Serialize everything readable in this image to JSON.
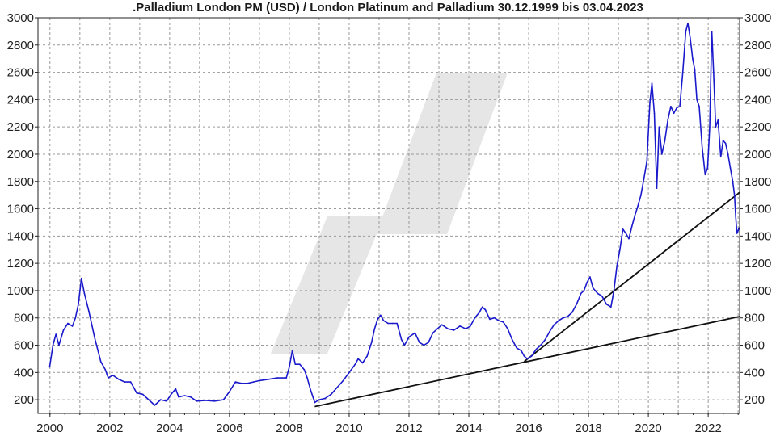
{
  "chart_data": {
    "type": "line",
    "title": ".Palladium London PM (USD) / London Platinum and Palladium 30.12.1999 bis 03.04.2023",
    "xlabel": "",
    "ylabel": "",
    "xlim": [
      1999.6,
      2023.05
    ],
    "ylim": [
      100,
      3000
    ],
    "grid": true,
    "legend": "none",
    "colors": {
      "series": "#1a1acc",
      "trend": "#111111",
      "watermark": "#e6e6e6",
      "grid": "#9a9a9a",
      "axis": "#222222"
    },
    "x_ticks": [
      {
        "v": 2000,
        "label": "2000"
      },
      {
        "v": 2002,
        "label": "2002"
      },
      {
        "v": 2004,
        "label": "2004"
      },
      {
        "v": 2006,
        "label": "2006"
      },
      {
        "v": 2008,
        "label": "2008"
      },
      {
        "v": 2010,
        "label": "2010"
      },
      {
        "v": 2012,
        "label": "2012"
      },
      {
        "v": 2014,
        "label": "2014"
      },
      {
        "v": 2016,
        "label": "2016"
      },
      {
        "v": 2018,
        "label": "2018"
      },
      {
        "v": 2020,
        "label": "2020"
      },
      {
        "v": 2022,
        "label": "2022"
      }
    ],
    "y_ticks": [
      {
        "v": 200,
        "label": "200"
      },
      {
        "v": 400,
        "label": "400"
      },
      {
        "v": 600,
        "label": "600"
      },
      {
        "v": 800,
        "label": "800"
      },
      {
        "v": 1000,
        "label": "1000"
      },
      {
        "v": 1200,
        "label": "1200"
      },
      {
        "v": 1400,
        "label": "1400"
      },
      {
        "v": 1600,
        "label": "1600"
      },
      {
        "v": 1800,
        "label": "1800"
      },
      {
        "v": 2000,
        "label": "2000"
      },
      {
        "v": 2200,
        "label": "2200"
      },
      {
        "v": 2400,
        "label": "2400"
      },
      {
        "v": 2600,
        "label": "2600"
      },
      {
        "v": 2800,
        "label": "2800"
      },
      {
        "v": 3000,
        "label": "3000"
      }
    ],
    "series": [
      {
        "values": [
          [
            1999.99,
            440
          ],
          [
            2000.1,
            600
          ],
          [
            2000.2,
            680
          ],
          [
            2000.3,
            600
          ],
          [
            2000.45,
            710
          ],
          [
            2000.6,
            760
          ],
          [
            2000.75,
            740
          ],
          [
            2000.85,
            800
          ],
          [
            2000.95,
            900
          ],
          [
            2001.05,
            1090
          ],
          [
            2001.15,
            980
          ],
          [
            2001.3,
            850
          ],
          [
            2001.5,
            650
          ],
          [
            2001.7,
            480
          ],
          [
            2001.85,
            420
          ],
          [
            2001.95,
            360
          ],
          [
            2002.1,
            380
          ],
          [
            2002.3,
            350
          ],
          [
            2002.5,
            330
          ],
          [
            2002.7,
            330
          ],
          [
            2002.9,
            250
          ],
          [
            2003.1,
            240
          ],
          [
            2003.3,
            200
          ],
          [
            2003.5,
            160
          ],
          [
            2003.7,
            200
          ],
          [
            2003.9,
            190
          ],
          [
            2004.05,
            240
          ],
          [
            2004.2,
            280
          ],
          [
            2004.3,
            220
          ],
          [
            2004.5,
            230
          ],
          [
            2004.7,
            220
          ],
          [
            2004.9,
            190
          ],
          [
            2005.2,
            195
          ],
          [
            2005.5,
            190
          ],
          [
            2005.8,
            200
          ],
          [
            2006.0,
            260
          ],
          [
            2006.2,
            330
          ],
          [
            2006.4,
            320
          ],
          [
            2006.6,
            320
          ],
          [
            2006.8,
            330
          ],
          [
            2007.0,
            340
          ],
          [
            2007.3,
            350
          ],
          [
            2007.6,
            360
          ],
          [
            2007.9,
            360
          ],
          [
            2008.0,
            440
          ],
          [
            2008.1,
            560
          ],
          [
            2008.2,
            460
          ],
          [
            2008.35,
            460
          ],
          [
            2008.5,
            420
          ],
          [
            2008.6,
            360
          ],
          [
            2008.7,
            280
          ],
          [
            2008.85,
            180
          ],
          [
            2009.0,
            200
          ],
          [
            2009.2,
            210
          ],
          [
            2009.4,
            240
          ],
          [
            2009.6,
            290
          ],
          [
            2009.8,
            340
          ],
          [
            2010.0,
            400
          ],
          [
            2010.2,
            460
          ],
          [
            2010.3,
            500
          ],
          [
            2010.45,
            470
          ],
          [
            2010.6,
            520
          ],
          [
            2010.75,
            620
          ],
          [
            2010.85,
            720
          ],
          [
            2010.95,
            790
          ],
          [
            2011.05,
            820
          ],
          [
            2011.15,
            780
          ],
          [
            2011.3,
            760
          ],
          [
            2011.45,
            760
          ],
          [
            2011.6,
            760
          ],
          [
            2011.75,
            640
          ],
          [
            2011.85,
            600
          ],
          [
            2012.0,
            660
          ],
          [
            2012.2,
            690
          ],
          [
            2012.35,
            620
          ],
          [
            2012.5,
            600
          ],
          [
            2012.65,
            620
          ],
          [
            2012.8,
            690
          ],
          [
            2012.95,
            720
          ],
          [
            2013.1,
            750
          ],
          [
            2013.3,
            720
          ],
          [
            2013.5,
            710
          ],
          [
            2013.7,
            740
          ],
          [
            2013.9,
            720
          ],
          [
            2014.05,
            740
          ],
          [
            2014.2,
            800
          ],
          [
            2014.35,
            840
          ],
          [
            2014.45,
            880
          ],
          [
            2014.55,
            860
          ],
          [
            2014.7,
            790
          ],
          [
            2014.85,
            800
          ],
          [
            2015.0,
            780
          ],
          [
            2015.15,
            770
          ],
          [
            2015.3,
            720
          ],
          [
            2015.45,
            640
          ],
          [
            2015.6,
            580
          ],
          [
            2015.75,
            560
          ],
          [
            2015.85,
            520
          ],
          [
            2015.95,
            500
          ],
          [
            2016.1,
            520
          ],
          [
            2016.25,
            570
          ],
          [
            2016.4,
            600
          ],
          [
            2016.55,
            640
          ],
          [
            2016.7,
            700
          ],
          [
            2016.85,
            750
          ],
          [
            2017.0,
            780
          ],
          [
            2017.15,
            800
          ],
          [
            2017.3,
            810
          ],
          [
            2017.45,
            840
          ],
          [
            2017.6,
            900
          ],
          [
            2017.75,
            980
          ],
          [
            2017.85,
            1000
          ],
          [
            2017.95,
            1060
          ],
          [
            2018.05,
            1100
          ],
          [
            2018.15,
            1020
          ],
          [
            2018.3,
            980
          ],
          [
            2018.45,
            960
          ],
          [
            2018.6,
            900
          ],
          [
            2018.75,
            880
          ],
          [
            2018.85,
            1000
          ],
          [
            2018.95,
            1180
          ],
          [
            2019.05,
            1300
          ],
          [
            2019.15,
            1450
          ],
          [
            2019.25,
            1420
          ],
          [
            2019.35,
            1380
          ],
          [
            2019.45,
            1470
          ],
          [
            2019.55,
            1550
          ],
          [
            2019.65,
            1620
          ],
          [
            2019.75,
            1700
          ],
          [
            2019.85,
            1820
          ],
          [
            2019.95,
            1950
          ],
          [
            2020.05,
            2380
          ],
          [
            2020.12,
            2520
          ],
          [
            2020.2,
            2300
          ],
          [
            2020.28,
            1750
          ],
          [
            2020.36,
            2200
          ],
          [
            2020.45,
            2000
          ],
          [
            2020.55,
            2100
          ],
          [
            2020.65,
            2250
          ],
          [
            2020.75,
            2350
          ],
          [
            2020.85,
            2300
          ],
          [
            2020.95,
            2340
          ],
          [
            2021.05,
            2350
          ],
          [
            2021.15,
            2600
          ],
          [
            2021.25,
            2900
          ],
          [
            2021.32,
            2960
          ],
          [
            2021.4,
            2850
          ],
          [
            2021.48,
            2700
          ],
          [
            2021.55,
            2620
          ],
          [
            2021.62,
            2400
          ],
          [
            2021.7,
            2350
          ],
          [
            2021.8,
            2050
          ],
          [
            2021.9,
            1850
          ],
          [
            2021.98,
            1900
          ],
          [
            2022.05,
            2200
          ],
          [
            2022.12,
            2900
          ],
          [
            2022.18,
            2600
          ],
          [
            2022.25,
            2200
          ],
          [
            2022.33,
            2250
          ],
          [
            2022.42,
            1980
          ],
          [
            2022.5,
            2100
          ],
          [
            2022.58,
            2080
          ],
          [
            2022.66,
            2000
          ],
          [
            2022.74,
            1900
          ],
          [
            2022.82,
            1800
          ],
          [
            2022.88,
            1700
          ],
          [
            2022.92,
            1540
          ],
          [
            2022.96,
            1420
          ],
          [
            2023.0,
            1440
          ],
          [
            2023.03,
            1460
          ]
        ]
      }
    ],
    "trendlines": [
      {
        "from": [
          2008.85,
          150
        ],
        "to": [
          2023.05,
          810
        ]
      },
      {
        "from": [
          2015.85,
          480
        ],
        "to": [
          2023.05,
          1720
        ]
      }
    ]
  }
}
